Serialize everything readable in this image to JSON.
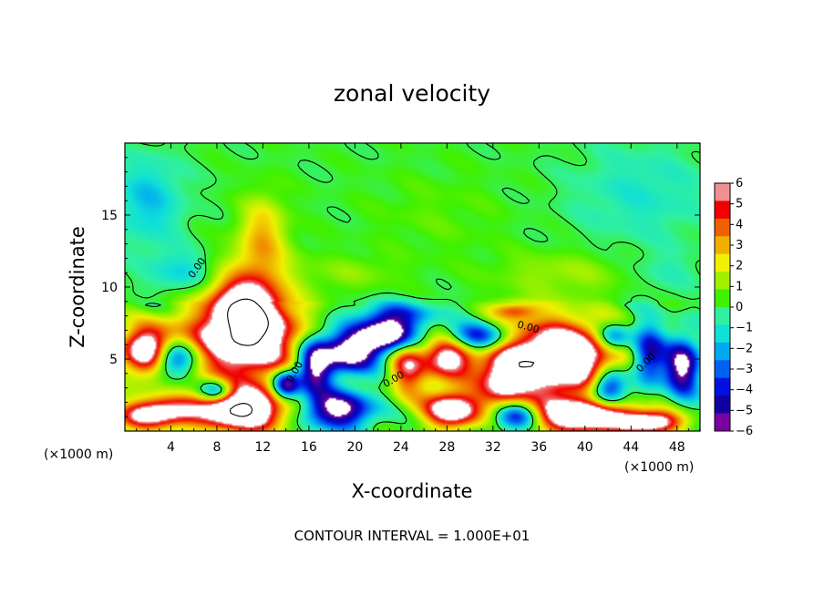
{
  "chart_data": {
    "type": "heatmap",
    "title": "zonal velocity",
    "xlabel": "X-coordinate",
    "ylabel": "Z-coordinate",
    "x_unit_label": "(×1000 m)",
    "x_unit_label_right": "(×1000 m)",
    "xlim": [
      0,
      50
    ],
    "ylim": [
      0,
      20
    ],
    "x_ticks": [
      4,
      8,
      12,
      16,
      20,
      24,
      28,
      32,
      36,
      40,
      44,
      48
    ],
    "x_tick_labels": [
      "4",
      "8",
      "12",
      "16",
      "20",
      "24",
      "28",
      "32",
      "36",
      "40",
      "44",
      "48"
    ],
    "y_ticks": [
      5,
      10,
      15
    ],
    "y_tick_labels": [
      "5",
      "10",
      "15"
    ],
    "colorbar": {
      "range": [
        -6,
        6
      ],
      "ticks": [
        6,
        5,
        4,
        3,
        2,
        1,
        0,
        -1,
        -2,
        -3,
        -4,
        -5,
        -6
      ],
      "tick_labels": [
        "6",
        "5",
        "4",
        "3",
        "2",
        "1",
        "0",
        "−1",
        "−2",
        "−3",
        "−4",
        "−5",
        "−6"
      ],
      "colors": [
        "#7a00a0",
        "#1000a0",
        "#0010e0",
        "#0060f0",
        "#00a8f0",
        "#10e0d8",
        "#30f0a0",
        "#40f000",
        "#a0f000",
        "#f0f000",
        "#f0b000",
        "#f06000",
        "#f00000",
        "#f09090"
      ]
    },
    "contour_labels": [
      "0.00",
      "0.00",
      "0.00",
      "0.00",
      "0.00"
    ],
    "footer": "CONTOUR INTERVAL = 1.000E+01",
    "features": [
      {
        "x": 10.5,
        "z": 6.5,
        "rx": 4.8,
        "rz": 3.0,
        "v": 9
      },
      {
        "x": 10.5,
        "z": 8.5,
        "rx": 2.5,
        "rz": 2.0,
        "v": 6
      },
      {
        "x": 2.2,
        "z": 5.5,
        "rx": 2.5,
        "rz": 1.8,
        "v": 9
      },
      {
        "x": 4.0,
        "z": 5.0,
        "rx": 2.0,
        "rz": 1.3,
        "v": -8
      },
      {
        "x": 37.5,
        "z": 5.0,
        "rx": 5.5,
        "rz": 2.6,
        "v": 10
      },
      {
        "x": 33.0,
        "z": 3.5,
        "rx": 2.0,
        "rz": 1.8,
        "v": 5
      },
      {
        "x": 28.0,
        "z": 5.2,
        "rx": 2.2,
        "rz": 1.6,
        "v": 7
      },
      {
        "x": 24.5,
        "z": 4.5,
        "rx": 1.6,
        "rz": 2.2,
        "v": 5
      },
      {
        "x": 19.5,
        "z": 5.5,
        "rx": 2.5,
        "rz": 1.4,
        "v": -8
      },
      {
        "x": 23.0,
        "z": 6.8,
        "rx": 2.5,
        "rz": 1.2,
        "v": -9
      },
      {
        "x": 16.5,
        "z": 4.5,
        "rx": 1.5,
        "rz": 2.0,
        "v": -7
      },
      {
        "x": 30.5,
        "z": 6.5,
        "rx": 3.0,
        "rz": 1.0,
        "v": -6
      },
      {
        "x": 42.0,
        "z": 3.0,
        "rx": 1.6,
        "rz": 1.4,
        "v": -7
      },
      {
        "x": 45.5,
        "z": 5.2,
        "rx": 1.5,
        "rz": 2.2,
        "v": -6
      },
      {
        "x": 48.5,
        "z": 4.5,
        "rx": 1.5,
        "rz": 2.0,
        "v": -7
      },
      {
        "x": 42.5,
        "z": 6.5,
        "rx": 1.5,
        "rz": 1.0,
        "v": -5
      },
      {
        "x": 10.0,
        "z": 1.5,
        "rx": 4.0,
        "rz": 1.5,
        "v": 10
      },
      {
        "x": 2.5,
        "z": 1.2,
        "rx": 3.0,
        "rz": 1.0,
        "v": 8
      },
      {
        "x": 28.5,
        "z": 1.5,
        "rx": 2.5,
        "rz": 1.3,
        "v": 8
      },
      {
        "x": 40.0,
        "z": 1.0,
        "rx": 4.5,
        "rz": 1.2,
        "v": 9
      },
      {
        "x": 18.5,
        "z": 1.5,
        "rx": 3.0,
        "rz": 1.3,
        "v": -7
      },
      {
        "x": 34.0,
        "z": 1.0,
        "rx": 2.0,
        "rz": 1.0,
        "v": -6
      },
      {
        "x": 46.0,
        "z": 0.6,
        "rx": 2.5,
        "rz": 0.8,
        "v": 7
      },
      {
        "x": 14.0,
        "z": 3.2,
        "rx": 1.2,
        "rz": 1.0,
        "v": -8
      },
      {
        "x": 8.0,
        "z": 2.8,
        "rx": 1.5,
        "rz": 0.8,
        "v": -6
      },
      {
        "x": 24.0,
        "z": 8.2,
        "rx": 4.0,
        "rz": 0.8,
        "v": -2.5
      },
      {
        "x": 34.0,
        "z": 8.4,
        "rx": 2.0,
        "rz": 0.6,
        "v": 3.5
      },
      {
        "x": 12.0,
        "z": 14.0,
        "rx": 2.0,
        "rz": 2.5,
        "v": 2.6
      },
      {
        "x": 11.5,
        "z": 11.5,
        "rx": 3.5,
        "rz": 2.0,
        "v": 1.6
      },
      {
        "x": 2.0,
        "z": 16.0,
        "rx": 3.0,
        "rz": 3.0,
        "v": -2.0
      },
      {
        "x": 5.0,
        "z": 11.0,
        "rx": 3.0,
        "rz": 1.5,
        "v": -1.8
      },
      {
        "x": 45.0,
        "z": 16.5,
        "rx": 6.0,
        "rz": 3.5,
        "v": -1.2
      },
      {
        "x": 47.0,
        "z": 11.0,
        "rx": 3.0,
        "rz": 1.5,
        "v": -0.8
      },
      {
        "x": 38.0,
        "z": 11.0,
        "rx": 6.0,
        "rz": 1.5,
        "v": 1.2
      },
      {
        "x": 20.0,
        "z": 11.0,
        "rx": 4.0,
        "rz": 1.2,
        "v": 0.9
      },
      {
        "x": 27.0,
        "z": 15.0,
        "rx": 6.0,
        "rz": 3.0,
        "v": 0.5
      }
    ]
  }
}
